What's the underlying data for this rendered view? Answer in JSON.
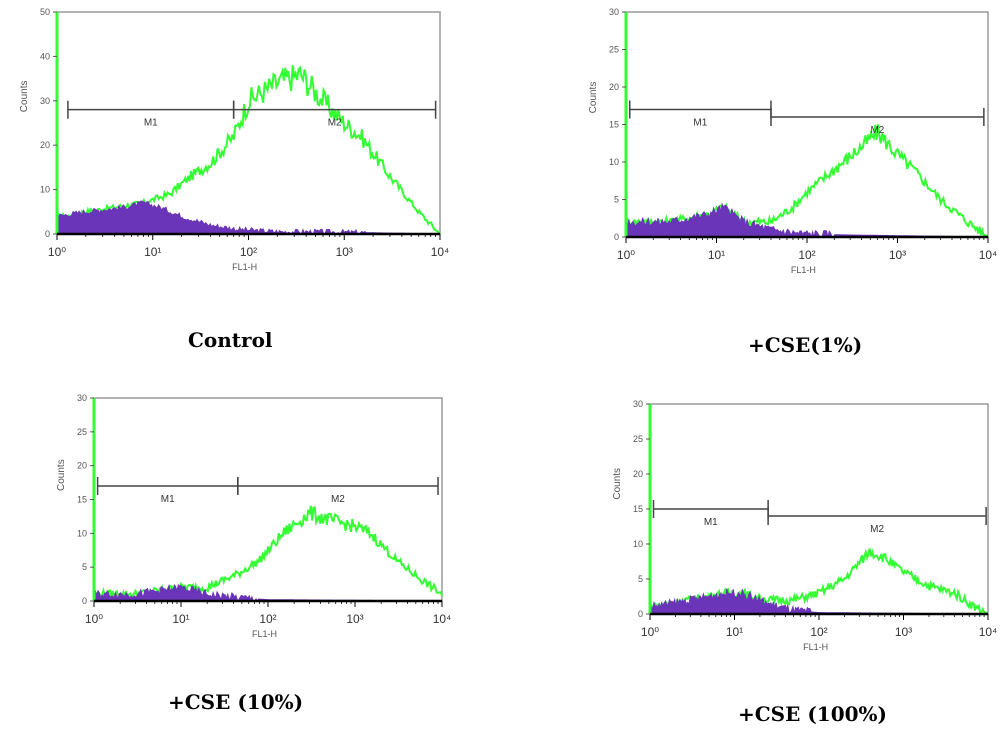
{
  "colors": {
    "sample": "#33ff33",
    "control": "#6a35b8",
    "axis": "#000000",
    "frame": "#9a9a9a",
    "gate": "#444444"
  },
  "chart_data": [
    {
      "type": "area",
      "caption": "Control",
      "xlabel": "FL1-H",
      "ylabel": "Counts",
      "xscale": "log",
      "xlim": [
        1,
        10000
      ],
      "ylim": [
        0,
        50
      ],
      "xticks": [
        1,
        10,
        100,
        1000,
        10000
      ],
      "xticklabels": [
        "10⁰",
        "10¹",
        "10²",
        "10³",
        "10⁴"
      ],
      "yticks": [
        0,
        10,
        20,
        30,
        40,
        50
      ],
      "yticklabels": [
        "0",
        "10",
        "20",
        "30",
        "40",
        "50"
      ],
      "gates": [
        {
          "name": "M1",
          "x": [
            1.3,
            70
          ],
          "y": 28
        },
        {
          "name": "M2",
          "x": [
            70,
            9000
          ],
          "y": 28
        }
      ],
      "series": [
        {
          "role": "sample",
          "points": [
            [
              1.3,
              4
            ],
            [
              2,
              5
            ],
            [
              4,
              6
            ],
            [
              8,
              7
            ],
            [
              15,
              9
            ],
            [
              25,
              13
            ],
            [
              40,
              16
            ],
            [
              70,
              22
            ],
            [
              100,
              30
            ],
            [
              200,
              34
            ],
            [
              350,
              36
            ],
            [
              600,
              30
            ],
            [
              1000,
              25
            ],
            [
              1500,
              22
            ],
            [
              3000,
              13
            ],
            [
              6000,
              5
            ],
            [
              10000,
              0
            ]
          ]
        },
        {
          "role": "control",
          "points": [
            [
              1,
              4
            ],
            [
              2,
              5
            ],
            [
              5,
              6
            ],
            [
              8,
              7
            ],
            [
              12,
              6
            ],
            [
              20,
              4
            ],
            [
              40,
              2
            ],
            [
              80,
              1
            ],
            [
              200,
              0.5
            ],
            [
              500,
              0.5
            ],
            [
              10000,
              0
            ]
          ]
        }
      ]
    },
    {
      "type": "area",
      "caption": "+CSE(1%)",
      "xlabel": "FL1-H",
      "ylabel": "Counts",
      "xscale": "log",
      "xlim": [
        1,
        10000
      ],
      "ylim": [
        0,
        30
      ],
      "xticks": [
        1,
        10,
        100,
        1000,
        10000
      ],
      "xticklabels": [
        "10⁰",
        "10¹",
        "10²",
        "10³",
        "10⁴"
      ],
      "yticks": [
        0,
        5,
        10,
        15,
        20,
        25,
        30
      ],
      "yticklabels": [
        "0",
        "5",
        "10",
        "15",
        "20",
        "25",
        "30"
      ],
      "gates": [
        {
          "name": "M1",
          "x": [
            1.1,
            40
          ],
          "y": 17
        },
        {
          "name": "M2",
          "x": [
            40,
            9000
          ],
          "y": 16
        }
      ],
      "series": [
        {
          "role": "sample",
          "points": [
            [
              1,
              2
            ],
            [
              3,
              2
            ],
            [
              8,
              3
            ],
            [
              12,
              4
            ],
            [
              20,
              2
            ],
            [
              40,
              2
            ],
            [
              70,
              4
            ],
            [
              100,
              6
            ],
            [
              200,
              9
            ],
            [
              400,
              12
            ],
            [
              600,
              14
            ],
            [
              1000,
              11
            ],
            [
              1500,
              9
            ],
            [
              3000,
              5
            ],
            [
              6000,
              2
            ],
            [
              10000,
              0
            ]
          ]
        },
        {
          "role": "control",
          "points": [
            [
              1,
              2
            ],
            [
              3,
              2
            ],
            [
              8,
              3
            ],
            [
              12,
              4
            ],
            [
              20,
              2
            ],
            [
              40,
              1
            ],
            [
              80,
              0.5
            ],
            [
              200,
              0.3
            ],
            [
              10000,
              0
            ]
          ]
        }
      ]
    },
    {
      "type": "area",
      "caption": "+CSE (10%)",
      "xlabel": "FL1-H",
      "ylabel": "Counts",
      "xscale": "log",
      "xlim": [
        1,
        10000
      ],
      "ylim": [
        0,
        30
      ],
      "xticks": [
        1,
        10,
        100,
        1000,
        10000
      ],
      "xticklabels": [
        "10⁰",
        "10¹",
        "10²",
        "10³",
        "10⁴"
      ],
      "yticks": [
        0,
        5,
        10,
        15,
        20,
        25,
        30
      ],
      "yticklabels": [
        "0",
        "5",
        "10",
        "15",
        "20",
        "25",
        "30"
      ],
      "gates": [
        {
          "name": "M1",
          "x": [
            1.1,
            45
          ],
          "y": 17
        },
        {
          "name": "M2",
          "x": [
            45,
            9000
          ],
          "y": 17
        }
      ],
      "series": [
        {
          "role": "sample",
          "points": [
            [
              1,
              1
            ],
            [
              3,
              1
            ],
            [
              10,
              2
            ],
            [
              20,
              2
            ],
            [
              45,
              4
            ],
            [
              80,
              6
            ],
            [
              150,
              10
            ],
            [
              300,
              13
            ],
            [
              500,
              12
            ],
            [
              1000,
              11
            ],
            [
              1500,
              10
            ],
            [
              3000,
              6
            ],
            [
              6000,
              3
            ],
            [
              10000,
              1
            ]
          ]
        },
        {
          "role": "control",
          "points": [
            [
              1,
              1
            ],
            [
              3,
              1
            ],
            [
              10,
              2
            ],
            [
              20,
              1
            ],
            [
              45,
              0.5
            ],
            [
              100,
              0.2
            ],
            [
              10000,
              0
            ]
          ]
        }
      ]
    },
    {
      "type": "area",
      "caption": "+CSE (100%)",
      "xlabel": "FL1-H",
      "ylabel": "Counts",
      "xscale": "log",
      "xlim": [
        1,
        10000
      ],
      "ylim": [
        0,
        30
      ],
      "xticks": [
        1,
        10,
        100,
        1000,
        10000
      ],
      "xticklabels": [
        "10⁰",
        "10¹",
        "10²",
        "10³",
        "10⁴"
      ],
      "yticks": [
        0,
        5,
        10,
        15,
        20,
        25,
        30
      ],
      "yticklabels": [
        "0",
        "5",
        "10",
        "15",
        "20",
        "25",
        "30"
      ],
      "gates": [
        {
          "name": "M1",
          "x": [
            1.1,
            25
          ],
          "y": 15
        },
        {
          "name": "M2",
          "x": [
            25,
            9500
          ],
          "y": 14
        }
      ],
      "series": [
        {
          "role": "sample",
          "points": [
            [
              1,
              1
            ],
            [
              3,
              2
            ],
            [
              8,
              3
            ],
            [
              12,
              3
            ],
            [
              25,
              2
            ],
            [
              50,
              2
            ],
            [
              100,
              3
            ],
            [
              200,
              5
            ],
            [
              400,
              9
            ],
            [
              600,
              8
            ],
            [
              1000,
              6
            ],
            [
              2000,
              4
            ],
            [
              4000,
              3
            ],
            [
              7000,
              1
            ],
            [
              10000,
              0
            ]
          ]
        },
        {
          "role": "control",
          "points": [
            [
              1,
              1
            ],
            [
              3,
              2
            ],
            [
              8,
              3
            ],
            [
              12,
              3
            ],
            [
              25,
              1.5
            ],
            [
              50,
              0.5
            ],
            [
              100,
              0.2
            ],
            [
              10000,
              0
            ]
          ]
        }
      ]
    }
  ]
}
